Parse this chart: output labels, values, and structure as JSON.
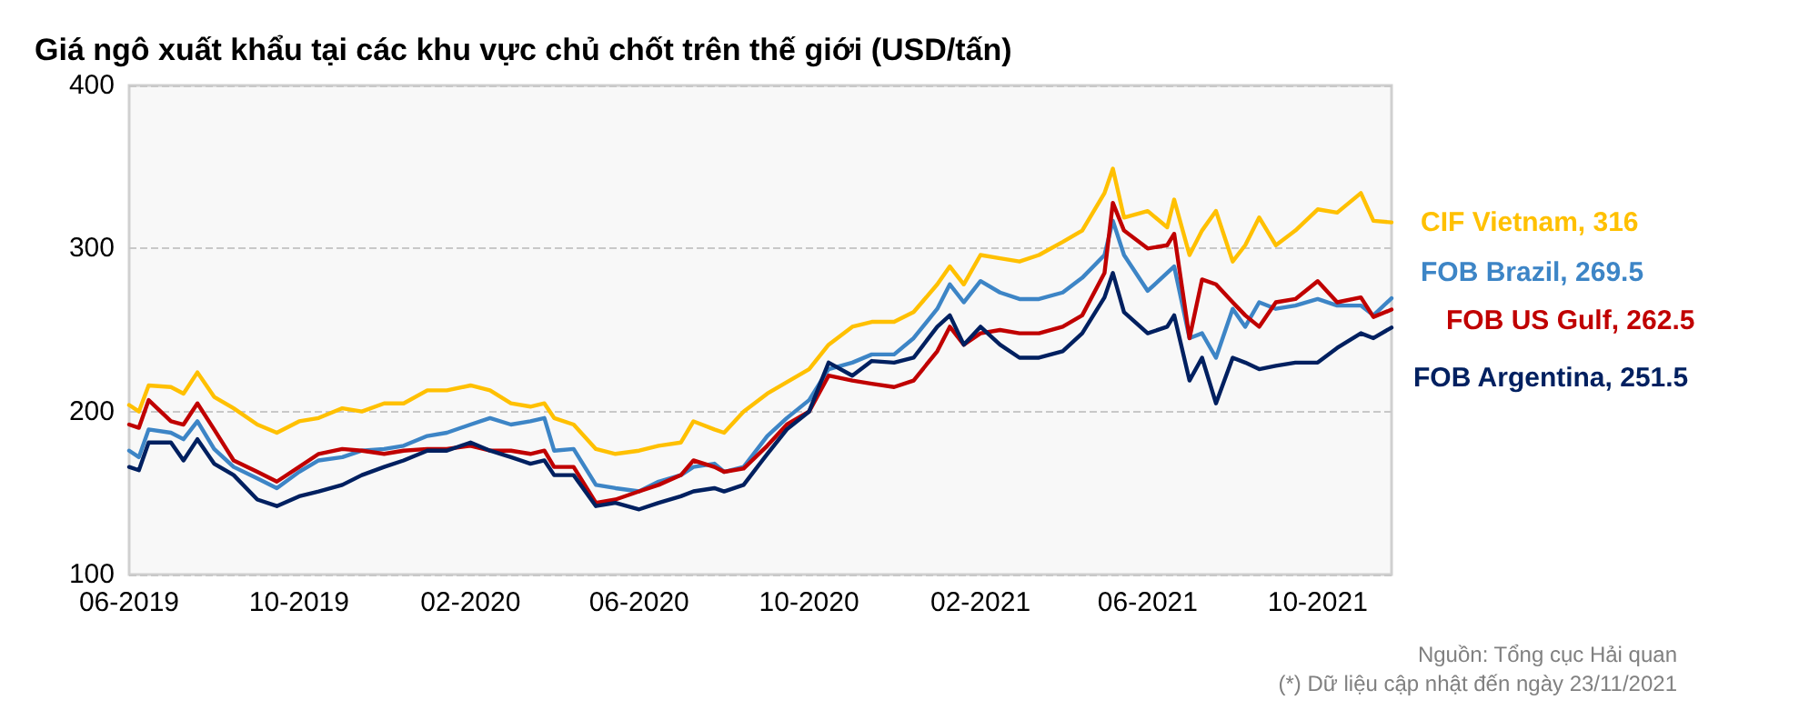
{
  "chart_data": {
    "type": "line",
    "title": "Giá ngô xuất khẩu tại các khu vực chủ chốt trên thế giới (USD/tấn)",
    "annotations": [
      "Nguồn: Tổng cục Hải quan",
      "(*) Dữ liệu cập nhật đến ngày 23/11/2021"
    ],
    "x": [
      "2019-06-01",
      "2019-06-08",
      "2019-06-15",
      "2019-07-01",
      "2019-07-10",
      "2019-07-20",
      "2019-08-01",
      "2019-08-15",
      "2019-09-01",
      "2019-09-15",
      "2019-10-01",
      "2019-10-15",
      "2019-11-01",
      "2019-11-15",
      "2019-12-01",
      "2019-12-15",
      "2020-01-01",
      "2020-01-15",
      "2020-02-01",
      "2020-02-15",
      "2020-03-01",
      "2020-03-15",
      "2020-03-25",
      "2020-04-01",
      "2020-04-15",
      "2020-05-01",
      "2020-05-15",
      "2020-06-01",
      "2020-06-15",
      "2020-07-01",
      "2020-07-10",
      "2020-07-25",
      "2020-08-01",
      "2020-08-15",
      "2020-09-01",
      "2020-09-15",
      "2020-10-01",
      "2020-10-15",
      "2020-11-01",
      "2020-11-15",
      "2020-12-01",
      "2020-12-15",
      "2021-01-01",
      "2021-01-10",
      "2021-01-20",
      "2021-02-01",
      "2021-02-15",
      "2021-03-01",
      "2021-03-15",
      "2021-04-01",
      "2021-04-15",
      "2021-05-01",
      "2021-05-07",
      "2021-05-15",
      "2021-06-01",
      "2021-06-15",
      "2021-06-20",
      "2021-07-01",
      "2021-07-10",
      "2021-07-20",
      "2021-08-01",
      "2021-08-10",
      "2021-08-20",
      "2021-09-01",
      "2021-09-15",
      "2021-10-01",
      "2021-10-15",
      "2021-11-01",
      "2021-11-10",
      "2021-11-23"
    ],
    "series": [
      {
        "name": "CIF Vietnam, 316",
        "color": "#ffc000",
        "values": [
          204,
          200,
          216,
          215,
          211,
          224,
          209,
          202,
          192,
          187,
          194,
          196,
          202,
          200,
          205,
          205,
          213,
          213,
          216,
          213,
          205,
          203,
          205,
          196,
          192,
          177,
          174,
          176,
          179,
          181,
          194,
          189,
          187,
          200,
          211,
          218,
          226,
          241,
          252,
          255,
          255,
          261,
          278,
          289,
          278,
          296,
          294,
          292,
          296,
          304,
          311,
          334,
          349,
          319,
          323,
          313,
          330,
          296,
          311,
          323,
          292,
          302,
          319,
          302,
          311,
          324,
          322,
          334,
          317,
          316
        ]
      },
      {
        "name": "FOB Brazil, 269.5",
        "color": "#3d85c6",
        "values": [
          176,
          172,
          189,
          187,
          183,
          194,
          177,
          166,
          159,
          153,
          163,
          170,
          172,
          176,
          177,
          179,
          185,
          187,
          192,
          196,
          192,
          194,
          196,
          176,
          177,
          155,
          153,
          151,
          157,
          161,
          166,
          168,
          163,
          166,
          185,
          196,
          207,
          226,
          230,
          235,
          235,
          245,
          263,
          278,
          267,
          280,
          273,
          269,
          269,
          273,
          282,
          296,
          317,
          296,
          274,
          285,
          289,
          245,
          248,
          233,
          263,
          252,
          267,
          263,
          265,
          269,
          265,
          265,
          259,
          269.5
        ]
      },
      {
        "name": "FOB US Gulf, 262.5",
        "color": "#c00000",
        "values": [
          192,
          190,
          207,
          194,
          192,
          205,
          189,
          170,
          163,
          157,
          166,
          174,
          177,
          176,
          174,
          176,
          177,
          177,
          179,
          176,
          176,
          174,
          176,
          166,
          166,
          144,
          146,
          151,
          155,
          161,
          170,
          166,
          163,
          165,
          179,
          192,
          200,
          222,
          219,
          217,
          215,
          219,
          237,
          252,
          241,
          248,
          250,
          248,
          248,
          252,
          259,
          285,
          328,
          311,
          300,
          302,
          309,
          245,
          281,
          278,
          267,
          259,
          252,
          267,
          269,
          280,
          267,
          270,
          258,
          262.5
        ]
      },
      {
        "name": "FOB Argentina, 251.5",
        "color": "#002060",
        "values": [
          166,
          164,
          181,
          181,
          170,
          183,
          168,
          161,
          146,
          142,
          148,
          151,
          155,
          161,
          166,
          170,
          176,
          176,
          181,
          176,
          172,
          168,
          170,
          161,
          161,
          142,
          144,
          140,
          144,
          148,
          151,
          153,
          151,
          155,
          174,
          189,
          200,
          230,
          222,
          231,
          230,
          233,
          252,
          259,
          241,
          252,
          241,
          233,
          233,
          237,
          248,
          270,
          285,
          261,
          248,
          252,
          259,
          219,
          233,
          205,
          233,
          230,
          226,
          228,
          230,
          230,
          239,
          248,
          245,
          251.5
        ]
      }
    ],
    "xlim": [
      "2019-06-01",
      "2021-11-23"
    ],
    "xticks": [
      {
        "value": "2019-06-01",
        "label": "06-2019"
      },
      {
        "value": "2019-10-01",
        "label": "10-2019"
      },
      {
        "value": "2020-02-01",
        "label": "02-2020"
      },
      {
        "value": "2020-06-01",
        "label": "06-2020"
      },
      {
        "value": "2020-10-01",
        "label": "10-2020"
      },
      {
        "value": "2021-02-01",
        "label": "02-2021"
      },
      {
        "value": "2021-06-01",
        "label": "06-2021"
      },
      {
        "value": "2021-10-01",
        "label": "10-2021"
      }
    ],
    "ylim": [
      100,
      400
    ],
    "yticks": [
      100,
      200,
      300,
      400
    ],
    "grid": "y",
    "legend": false,
    "marker": "none",
    "line_style": "solid"
  }
}
